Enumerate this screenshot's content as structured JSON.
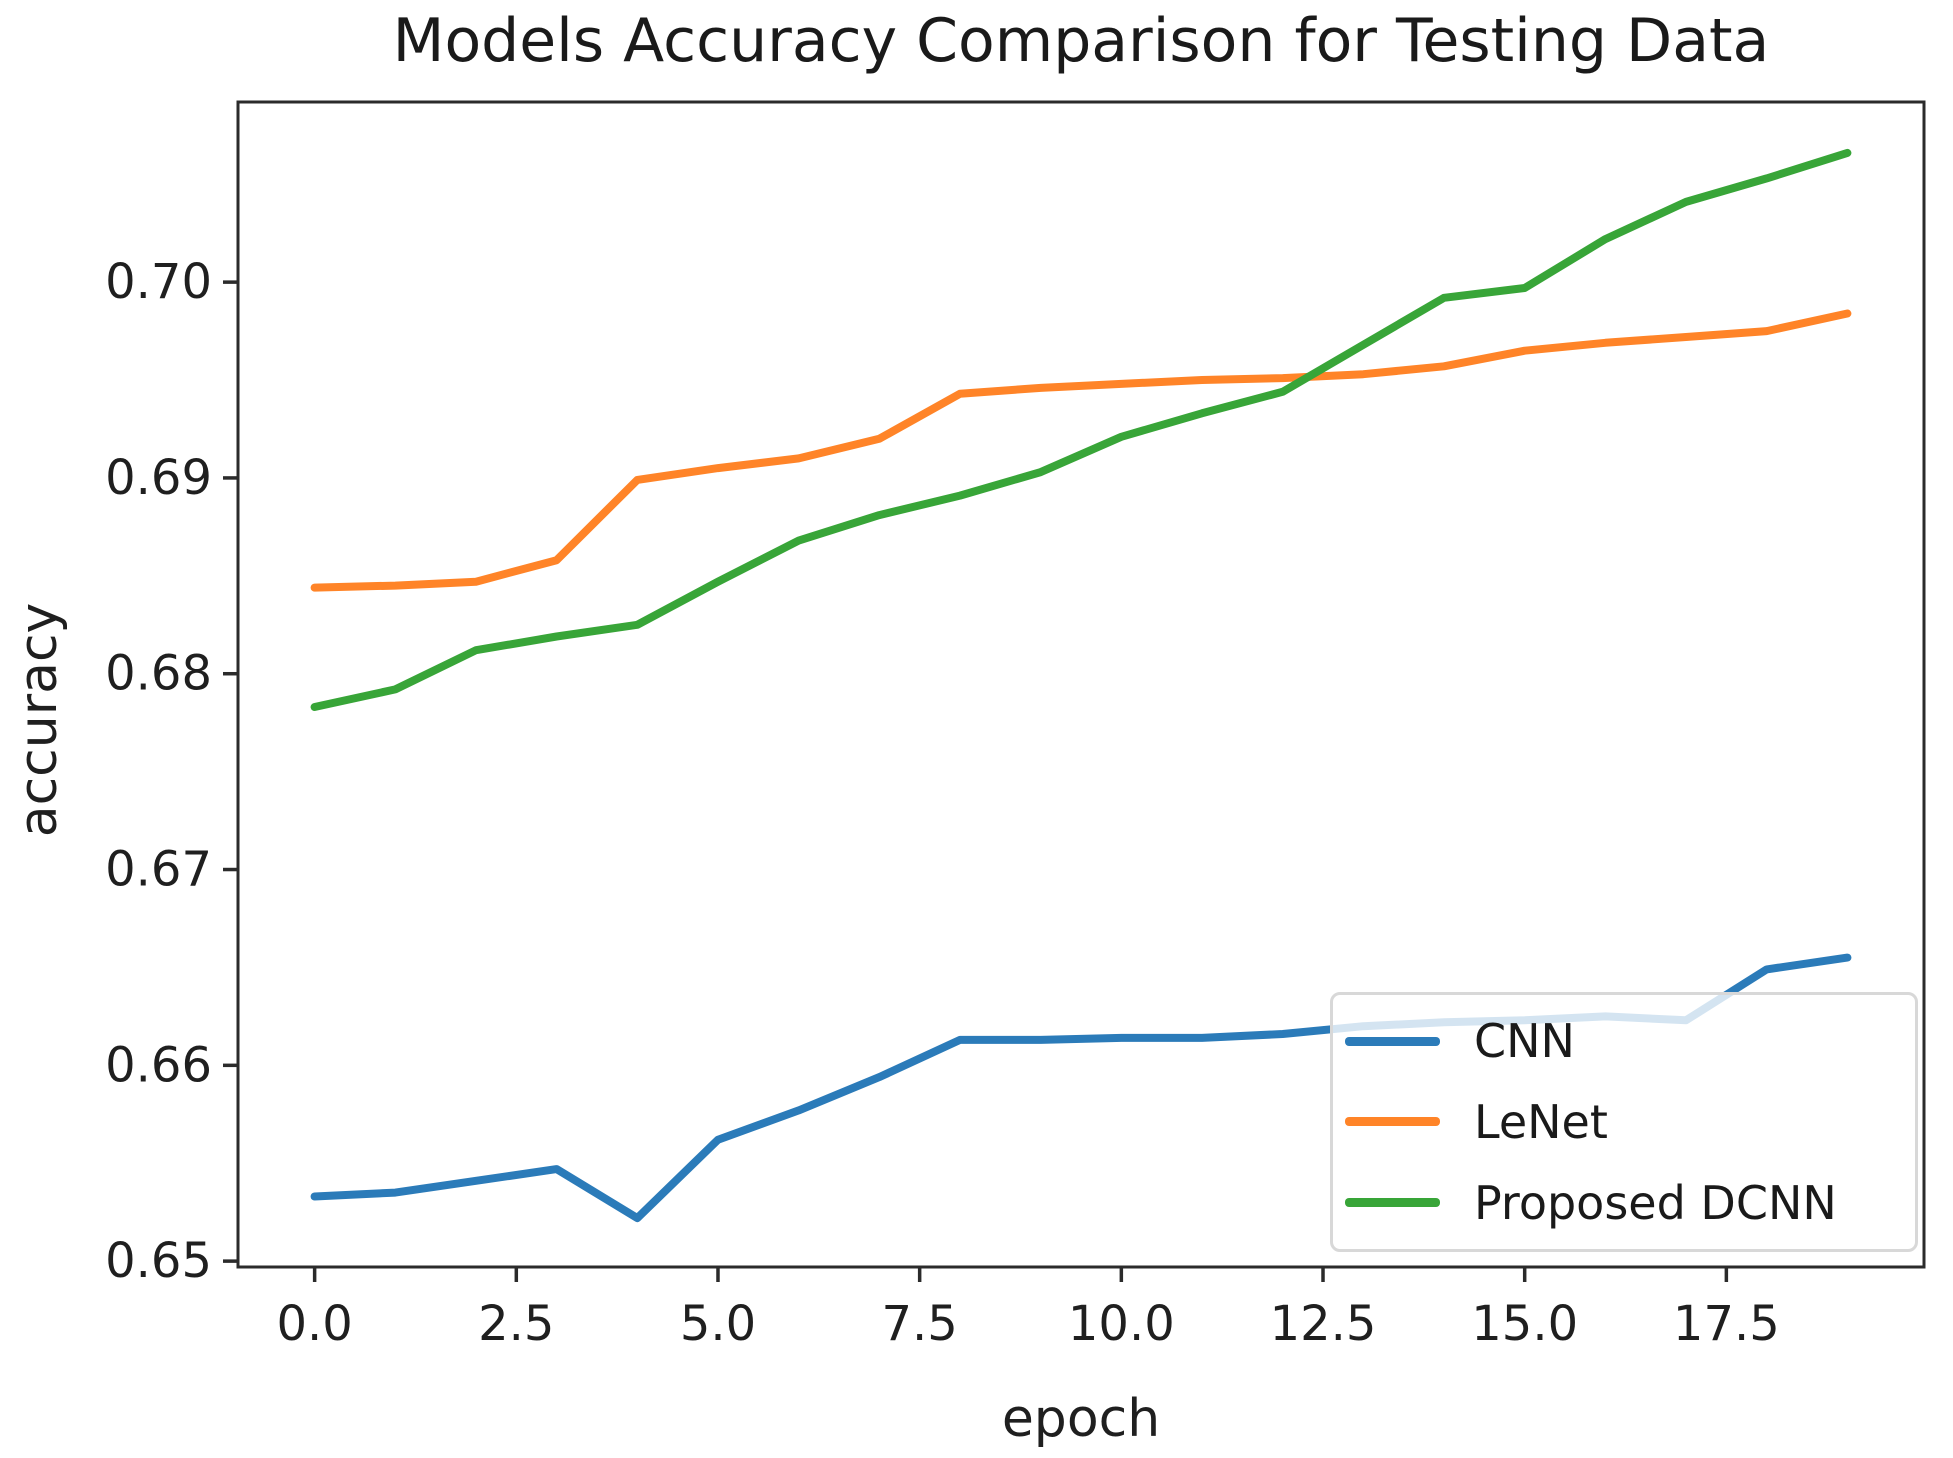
{
  "chart_data": {
    "type": "line",
    "title": "Models Accuracy Comparison for Testing Data",
    "xlabel": "epoch",
    "ylabel": "accuracy",
    "x": [
      0,
      1,
      2,
      3,
      4,
      5,
      6,
      7,
      8,
      9,
      10,
      11,
      12,
      13,
      14,
      15,
      16,
      17,
      18,
      19
    ],
    "series": [
      {
        "name": "CNN",
        "color": "#2b7bb9",
        "values": [
          0.6533,
          0.6535,
          0.6541,
          0.6547,
          0.6522,
          0.6562,
          0.6577,
          0.6594,
          0.6613,
          0.6613,
          0.6614,
          0.6614,
          0.6616,
          0.662,
          0.6622,
          0.6623,
          0.6625,
          0.6623,
          0.6649,
          0.6655
        ]
      },
      {
        "name": "LeNet",
        "color": "#ff8428",
        "values": [
          0.6844,
          0.6845,
          0.6847,
          0.6858,
          0.6899,
          0.6905,
          0.691,
          0.692,
          0.6943,
          0.6946,
          0.6948,
          0.695,
          0.6951,
          0.6953,
          0.6957,
          0.6965,
          0.6969,
          0.6972,
          0.6975,
          0.6984
        ]
      },
      {
        "name": "Proposed DCNN",
        "color": "#38a538",
        "values": [
          0.6783,
          0.6792,
          0.6812,
          0.6819,
          0.6825,
          0.6847,
          0.6868,
          0.6881,
          0.6891,
          0.6903,
          0.6921,
          0.6933,
          0.6944,
          0.6968,
          0.6992,
          0.6997,
          0.7022,
          0.7041,
          0.7053,
          0.7066
        ]
      }
    ],
    "xlim": [
      -0.95,
      19.95
    ],
    "ylim": [
      0.6497,
      0.7092
    ],
    "xticks": {
      "values": [
        0,
        2.5,
        5,
        7.5,
        10,
        12.5,
        15,
        17.5
      ],
      "labels": [
        "0.0",
        "2.5",
        "5.0",
        "7.5",
        "10.0",
        "12.5",
        "15.0",
        "17.5"
      ]
    },
    "yticks": {
      "values": [
        0.65,
        0.66,
        0.67,
        0.68,
        0.69,
        0.7
      ],
      "labels": [
        "0.65",
        "0.66",
        "0.67",
        "0.68",
        "0.69",
        "0.70"
      ]
    },
    "grid": false,
    "legend_position": "lower right",
    "axis_color": "#2b2b2b",
    "text_color": "#1f1f1f",
    "legend_border_color": "#d8d8d8",
    "legend_bg_alpha": 0.8
  }
}
